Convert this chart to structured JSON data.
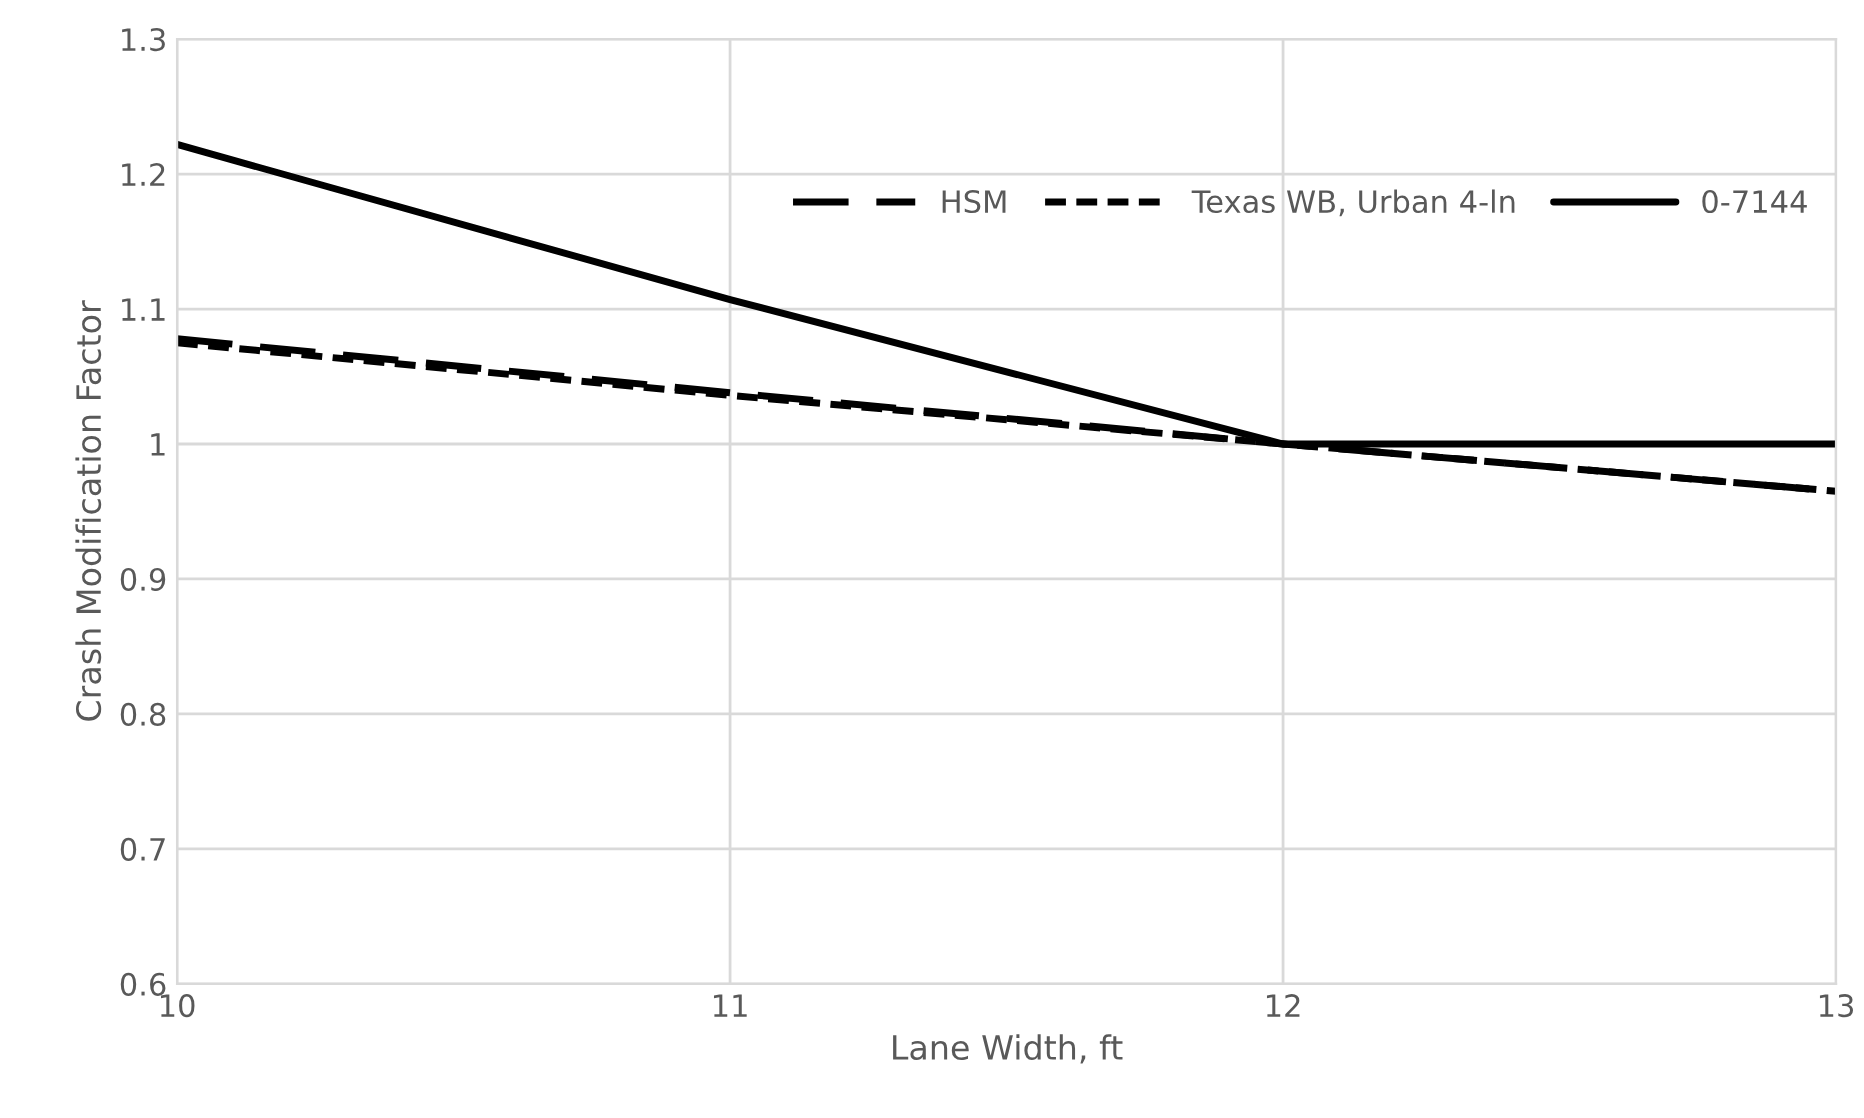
{
  "chart_data": {
    "type": "line",
    "xlabel": "Lane Width, ft",
    "ylabel": "Crash Modification Factor",
    "x": [
      10,
      11,
      12,
      13
    ],
    "series": [
      {
        "name": "HSM",
        "color": "#000000",
        "line_style": "dashed",
        "values": [
          1.078,
          1.038,
          1.0,
          0.965
        ]
      },
      {
        "name": "Texas WB, Urban 4-ln",
        "color": "#000000",
        "line_style": "dotted",
        "values": [
          1.075,
          1.036,
          1.0,
          0.965
        ]
      },
      {
        "name": "0-7144",
        "color": "#000000",
        "line_style": "solid",
        "values": [
          1.222,
          1.107,
          1.0,
          1.0
        ]
      }
    ],
    "xlim": [
      10,
      13
    ],
    "xticks": [
      10,
      11,
      12,
      13
    ],
    "ylim": [
      0.6,
      1.3
    ],
    "yticks": [
      0.6,
      0.7,
      0.8,
      0.9,
      1,
      1.1,
      1.2,
      1.3
    ],
    "grid": true,
    "legend": "top right",
    "marker": "none"
  }
}
